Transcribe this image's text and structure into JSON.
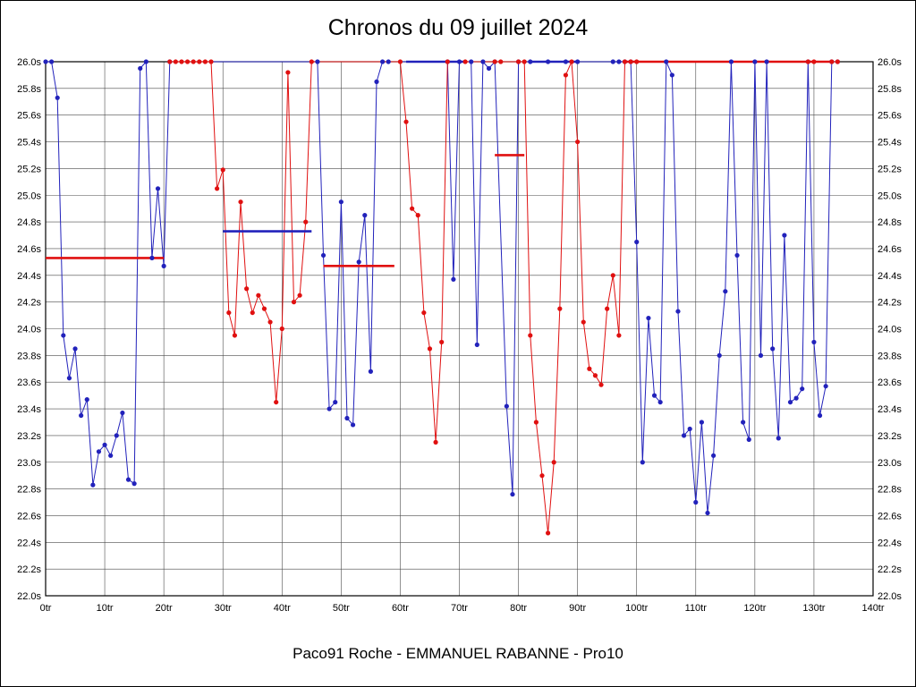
{
  "page": {
    "title": "Chronos du 09 juillet 2024",
    "footer": "Paco91 Roche - EMMANUEL RABANNE - Pro10"
  },
  "chart_data": {
    "type": "line",
    "title": "Chronos du 09 juillet 2024",
    "caption": "Paco91 Roche - EMMANUEL RABANNE - Pro10",
    "xlabel": "",
    "ylabel": "",
    "x_unit": "tr",
    "y_unit": "s",
    "xlim": [
      0,
      140
    ],
    "ylim": [
      22.0,
      26.0
    ],
    "x_tick_step": 10,
    "y_tick_step": 0.2,
    "grid": true,
    "y_labels_both_sides": true,
    "legend": "none",
    "background": "#ffffff",
    "grid_color": "#4a4a4a",
    "axis_color": "#000000",
    "series": [
      {
        "name": "driver-blue",
        "color": "#2222bb",
        "points": [
          [
            0,
            26.0
          ],
          [
            1,
            26.0
          ],
          [
            2,
            25.73
          ],
          [
            3,
            23.95
          ],
          [
            4,
            23.63
          ],
          [
            5,
            23.85
          ],
          [
            6,
            23.35
          ],
          [
            7,
            23.47
          ],
          [
            8,
            22.83
          ],
          [
            9,
            23.08
          ],
          [
            10,
            23.13
          ],
          [
            11,
            23.05
          ],
          [
            12,
            23.2
          ],
          [
            13,
            23.37
          ],
          [
            14,
            22.87
          ],
          [
            15,
            22.84
          ],
          [
            16,
            25.95
          ],
          [
            17,
            26.0
          ],
          [
            18,
            24.53
          ],
          [
            19,
            25.05
          ],
          [
            20,
            24.47
          ],
          [
            21,
            26.0
          ],
          [
            46,
            26.0
          ],
          [
            47,
            24.55
          ],
          [
            48,
            23.4
          ],
          [
            49,
            23.45
          ],
          [
            50,
            24.95
          ],
          [
            51,
            23.33
          ],
          [
            52,
            23.28
          ],
          [
            53,
            24.5
          ],
          [
            54,
            24.85
          ],
          [
            55,
            23.68
          ],
          [
            56,
            25.85
          ],
          [
            57,
            26.0
          ],
          [
            58,
            26.0
          ],
          [
            68,
            26.0
          ],
          [
            69,
            24.37
          ],
          [
            70,
            26.0
          ],
          [
            72,
            26.0
          ],
          [
            73,
            23.88
          ],
          [
            74,
            26.0
          ],
          [
            75,
            25.95
          ],
          [
            76,
            26.0
          ],
          [
            78,
            23.42
          ],
          [
            79,
            22.76
          ],
          [
            80,
            26.0
          ],
          [
            82,
            26.0
          ],
          [
            85,
            26.0
          ],
          [
            88,
            26.0
          ],
          [
            90,
            26.0
          ],
          [
            96,
            26.0
          ],
          [
            97,
            26.0
          ],
          [
            98,
            26.0
          ],
          [
            99,
            26.0
          ],
          [
            100,
            24.65
          ],
          [
            101,
            23.0
          ],
          [
            102,
            24.08
          ],
          [
            103,
            23.5
          ],
          [
            104,
            23.45
          ],
          [
            105,
            26.0
          ],
          [
            106,
            25.9
          ],
          [
            107,
            24.13
          ],
          [
            108,
            23.2
          ],
          [
            109,
            23.25
          ],
          [
            110,
            22.7
          ],
          [
            111,
            23.3
          ],
          [
            112,
            22.62
          ],
          [
            113,
            23.05
          ],
          [
            114,
            23.8
          ],
          [
            115,
            24.28
          ],
          [
            116,
            26.0
          ],
          [
            117,
            24.55
          ],
          [
            118,
            23.3
          ],
          [
            119,
            23.17
          ],
          [
            120,
            26.0
          ],
          [
            121,
            23.8
          ],
          [
            122,
            26.0
          ],
          [
            123,
            23.85
          ],
          [
            124,
            23.18
          ],
          [
            125,
            24.7
          ],
          [
            126,
            23.45
          ],
          [
            127,
            23.48
          ],
          [
            128,
            23.55
          ],
          [
            129,
            26.0
          ],
          [
            130,
            23.9
          ],
          [
            131,
            23.35
          ],
          [
            132,
            23.57
          ],
          [
            133,
            26.0
          ],
          [
            134,
            26.0
          ]
        ]
      },
      {
        "name": "driver-red",
        "color": "#e01010",
        "points": [
          [
            21,
            26.0
          ],
          [
            22,
            26.0
          ],
          [
            23,
            26.0
          ],
          [
            24,
            26.0
          ],
          [
            25,
            26.0
          ],
          [
            26,
            26.0
          ],
          [
            27,
            26.0
          ],
          [
            28,
            26.0
          ],
          [
            29,
            25.05
          ],
          [
            30,
            25.19
          ],
          [
            31,
            24.12
          ],
          [
            32,
            23.95
          ],
          [
            33,
            24.95
          ],
          [
            34,
            24.3
          ],
          [
            35,
            24.12
          ],
          [
            36,
            24.25
          ],
          [
            37,
            24.15
          ],
          [
            38,
            24.05
          ],
          [
            39,
            23.45
          ],
          [
            40,
            24.0
          ],
          [
            41,
            25.92
          ],
          [
            42,
            24.2
          ],
          [
            43,
            24.25
          ],
          [
            44,
            24.8
          ],
          [
            45,
            26.0
          ],
          [
            60,
            26.0
          ],
          [
            61,
            25.55
          ],
          [
            62,
            24.9
          ],
          [
            63,
            24.85
          ],
          [
            64,
            24.12
          ],
          [
            65,
            23.85
          ],
          [
            66,
            23.15
          ],
          [
            67,
            23.9
          ],
          [
            68,
            26.0
          ],
          [
            71,
            26.0
          ],
          [
            76,
            26.0
          ],
          [
            77,
            26.0
          ],
          [
            80,
            26.0
          ],
          [
            81,
            26.0
          ],
          [
            82,
            23.95
          ],
          [
            83,
            23.3
          ],
          [
            84,
            22.9
          ],
          [
            85,
            22.47
          ],
          [
            86,
            23.0
          ],
          [
            87,
            24.15
          ],
          [
            88,
            25.9
          ],
          [
            89,
            26.0
          ],
          [
            90,
            25.4
          ],
          [
            91,
            24.05
          ],
          [
            92,
            23.7
          ],
          [
            93,
            23.65
          ],
          [
            94,
            23.58
          ],
          [
            95,
            24.15
          ],
          [
            96,
            24.4
          ],
          [
            97,
            23.95
          ],
          [
            98,
            26.0
          ],
          [
            99,
            26.0
          ],
          [
            100,
            26.0
          ],
          [
            129,
            26.0
          ],
          [
            130,
            26.0
          ],
          [
            133,
            26.0
          ],
          [
            134,
            26.0
          ]
        ]
      }
    ],
    "average_segments": [
      {
        "color": "#e01010",
        "x1": 0,
        "x2": 20,
        "y": 24.53
      },
      {
        "color": "#2222bb",
        "x1": 30,
        "x2": 45,
        "y": 24.73
      },
      {
        "color": "#e01010",
        "x1": 47,
        "x2": 59,
        "y": 24.47
      },
      {
        "color": "#2222bb",
        "x1": 61,
        "x2": 71,
        "y": 26.0
      },
      {
        "color": "#e01010",
        "x1": 76,
        "x2": 81,
        "y": 25.3
      },
      {
        "color": "#2222bb",
        "x1": 82,
        "x2": 90,
        "y": 26.0
      },
      {
        "color": "#e01010",
        "x1": 98,
        "x2": 133,
        "y": 26.0
      }
    ]
  }
}
